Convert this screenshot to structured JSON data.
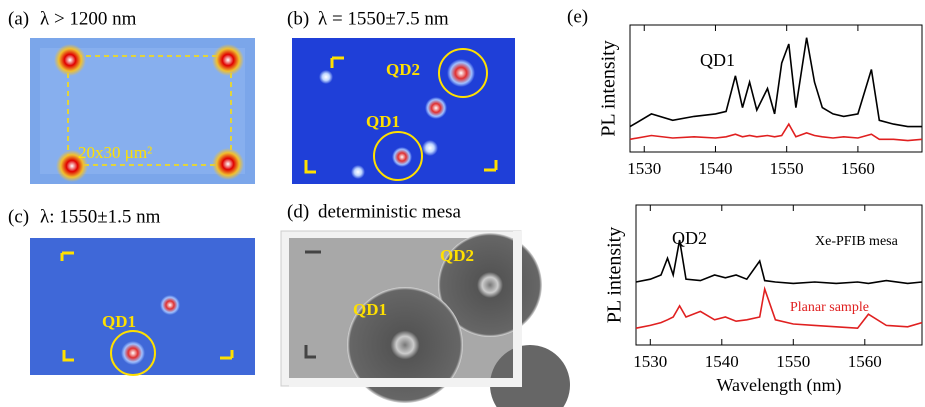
{
  "panels": [
    {
      "label": "(a)",
      "title": "λ > 1200 nm",
      "annotations": [
        "20x30 μm²"
      ]
    },
    {
      "label": "(b)",
      "title": "λ = 1550±7.5 nm",
      "annotations": [
        "QD2",
        "QD1"
      ]
    },
    {
      "label": "(c)",
      "title": "λ: 1550±1.5 nm",
      "annotations": [
        "QD1"
      ]
    },
    {
      "label": "(d)",
      "title": "deterministic mesa",
      "annotations": [
        "QD2",
        "QD1"
      ]
    },
    {
      "label": "(e)"
    }
  ],
  "chart_data": [
    {
      "type": "line",
      "ylabel": "PL intensity",
      "annotations": [
        "QD1"
      ],
      "x": [
        1528,
        1531,
        1534,
        1537,
        1540,
        1541.5,
        1542.8,
        1543.8,
        1544.8,
        1545.8,
        1547.3,
        1548.3,
        1549.3,
        1550.3,
        1551.3,
        1552.8,
        1553.9,
        1555,
        1556.5,
        1558,
        1560,
        1561.9,
        1563,
        1565,
        1567,
        1569
      ],
      "series": [
        {
          "color": "#000000",
          "values": [
            0.2,
            0.3,
            0.25,
            0.28,
            0.3,
            0.32,
            0.6,
            0.35,
            0.55,
            0.33,
            0.5,
            0.3,
            0.7,
            0.85,
            0.35,
            0.9,
            0.55,
            0.35,
            0.3,
            0.28,
            0.3,
            0.65,
            0.25,
            0.22,
            0.2,
            0.2
          ]
        },
        {
          "color": "#e02020",
          "values": [
            0.1,
            0.13,
            0.11,
            0.12,
            0.11,
            0.12,
            0.14,
            0.12,
            0.13,
            0.12,
            0.13,
            0.12,
            0.13,
            0.22,
            0.12,
            0.15,
            0.13,
            0.12,
            0.11,
            0.12,
            0.11,
            0.14,
            0.1,
            0.1,
            0.09,
            0.1
          ]
        }
      ],
      "xlim": [
        1528,
        1569
      ],
      "xticks": [
        1530,
        1540,
        1550,
        1560
      ],
      "ylim": [
        0,
        1
      ]
    },
    {
      "type": "line",
      "ylabel": "PL intensity",
      "xlabel": "Wavelength (nm)",
      "annotations": [
        "QD2"
      ],
      "x": [
        1528,
        1530,
        1531.5,
        1532.4,
        1533.2,
        1534.1,
        1535,
        1537,
        1539,
        1540.5,
        1542,
        1543.5,
        1545.3,
        1546,
        1547.5,
        1550,
        1553,
        1556,
        1559,
        1560.5,
        1563,
        1566,
        1568
      ],
      "series": [
        {
          "name": "Xe-PFIB mesa",
          "color": "#000000",
          "values": [
            0.45,
            0.47,
            0.5,
            0.62,
            0.5,
            0.75,
            0.47,
            0.46,
            0.5,
            0.48,
            0.5,
            0.47,
            0.6,
            0.46,
            0.45,
            0.44,
            0.45,
            0.44,
            0.45,
            0.44,
            0.46,
            0.44,
            0.45
          ]
        },
        {
          "name": "Planar sample",
          "color": "#e02020",
          "values": [
            0.12,
            0.14,
            0.16,
            0.18,
            0.2,
            0.28,
            0.2,
            0.24,
            0.18,
            0.2,
            0.17,
            0.18,
            0.2,
            0.4,
            0.18,
            0.15,
            0.14,
            0.13,
            0.12,
            0.22,
            0.14,
            0.13,
            0.16
          ]
        }
      ],
      "xlim": [
        1528,
        1568
      ],
      "xticks": [
        1530,
        1540,
        1550,
        1560
      ],
      "ylim": [
        0,
        1
      ]
    }
  ]
}
